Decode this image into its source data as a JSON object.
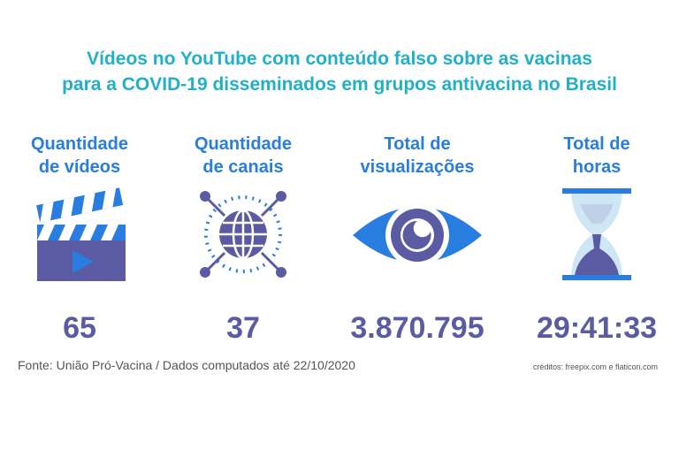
{
  "title_line1": "Vídeos no YouTube com conteúdo falso sobre as vacinas",
  "title_line2": "para a COVID-19 disseminados em grupos antivacina no Brasil",
  "stats": [
    {
      "label1": "Quantidade",
      "label2": "de vídeos",
      "value": "65",
      "icon": "clapperboard-icon"
    },
    {
      "label1": "Quantidade",
      "label2": "de canais",
      "value": "37",
      "icon": "globe-network-icon"
    },
    {
      "label1": "Total de",
      "label2": "visualizações",
      "value": "3.870.795",
      "icon": "eye-icon"
    },
    {
      "label1": "Total de",
      "label2": "horas",
      "value": "29:41:33",
      "icon": "hourglass-icon"
    }
  ],
  "source": "Fonte: União Pró-Vacina / Dados computados até 22/10/2020",
  "credits": "créditos: freepix.com e flaticon.com",
  "colors": {
    "title": "#22b0c8",
    "label": "#2a7de0",
    "value": "#5b5ba3",
    "icon_primary": "#5b5ba3",
    "icon_blue": "#2a7de0"
  }
}
